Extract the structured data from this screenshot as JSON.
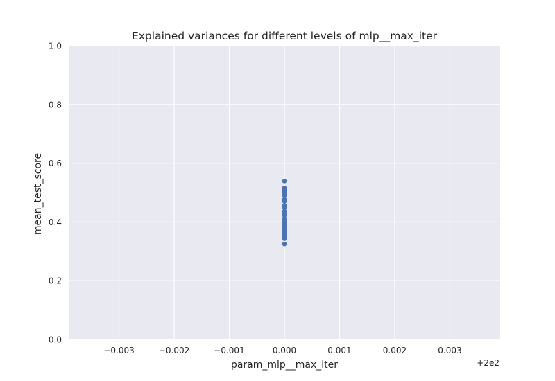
{
  "chart_data": {
    "type": "scatter",
    "title": "Explained variances for different levels of mlp__max_iter",
    "xlabel": "param_mlp__max_iter",
    "ylabel": "mean_test_score",
    "x_offset_text": "+2e2",
    "xlim": [
      -0.0039,
      0.0039
    ],
    "ylim": [
      0.0,
      1.0
    ],
    "x_ticks": [
      -0.003,
      -0.002,
      -0.001,
      0.0,
      0.001,
      0.002,
      0.003
    ],
    "x_tick_labels": [
      "−0.003",
      "−0.002",
      "−0.001",
      "0.000",
      "0.001",
      "0.002",
      "0.003"
    ],
    "y_ticks": [
      0.0,
      0.2,
      0.4,
      0.6,
      0.8,
      1.0
    ],
    "y_tick_labels": [
      "0.0",
      "0.2",
      "0.4",
      "0.6",
      "0.8",
      "1.0"
    ],
    "grid": true,
    "background": "#e9e9f1",
    "point_color": "#4c72b0",
    "points": [
      {
        "x": 0.0,
        "y": 0.539
      },
      {
        "x": 0.0,
        "y": 0.516
      },
      {
        "x": 0.0,
        "y": 0.51
      },
      {
        "x": 0.0,
        "y": 0.503
      },
      {
        "x": 0.0,
        "y": 0.497
      },
      {
        "x": 0.0,
        "y": 0.49
      },
      {
        "x": 0.0,
        "y": 0.477
      },
      {
        "x": 0.0,
        "y": 0.47
      },
      {
        "x": 0.0,
        "y": 0.456
      },
      {
        "x": 0.0,
        "y": 0.45
      },
      {
        "x": 0.0,
        "y": 0.437
      },
      {
        "x": 0.0,
        "y": 0.43
      },
      {
        "x": 0.0,
        "y": 0.423
      },
      {
        "x": 0.0,
        "y": 0.412
      },
      {
        "x": 0.0,
        "y": 0.405
      },
      {
        "x": 0.0,
        "y": 0.396
      },
      {
        "x": 0.0,
        "y": 0.388
      },
      {
        "x": 0.0,
        "y": 0.382
      },
      {
        "x": 0.0,
        "y": 0.377
      },
      {
        "x": 0.0,
        "y": 0.37
      },
      {
        "x": 0.0,
        "y": 0.363
      },
      {
        "x": 0.0,
        "y": 0.357
      },
      {
        "x": 0.0,
        "y": 0.35
      },
      {
        "x": 0.0,
        "y": 0.343
      },
      {
        "x": 0.0,
        "y": 0.325
      }
    ]
  }
}
